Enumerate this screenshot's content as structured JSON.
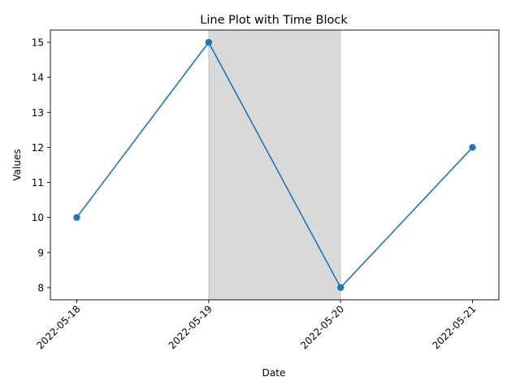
{
  "chart_data": {
    "type": "line",
    "title": "Line Plot with Time Block",
    "xlabel": "Date",
    "ylabel": "Values",
    "x": [
      "2022-05-18",
      "2022-05-19",
      "2022-05-20",
      "2022-05-21"
    ],
    "series": [
      {
        "values": [
          10,
          15,
          8,
          12
        ],
        "color": "#1f77b4",
        "marker": "circle"
      }
    ],
    "highlight_span": {
      "start": "2022-05-19",
      "end": "2022-05-20",
      "color": "#808080",
      "alpha": 0.3
    },
    "xlim": [
      "2022-05-17T19:12",
      "2022-05-21T04:48"
    ],
    "ylim": [
      7.65,
      15.35
    ],
    "yticks": [
      8,
      9,
      10,
      11,
      12,
      13,
      14,
      15
    ],
    "grid": false,
    "legend": "none",
    "x_tick_rotation": 45
  }
}
